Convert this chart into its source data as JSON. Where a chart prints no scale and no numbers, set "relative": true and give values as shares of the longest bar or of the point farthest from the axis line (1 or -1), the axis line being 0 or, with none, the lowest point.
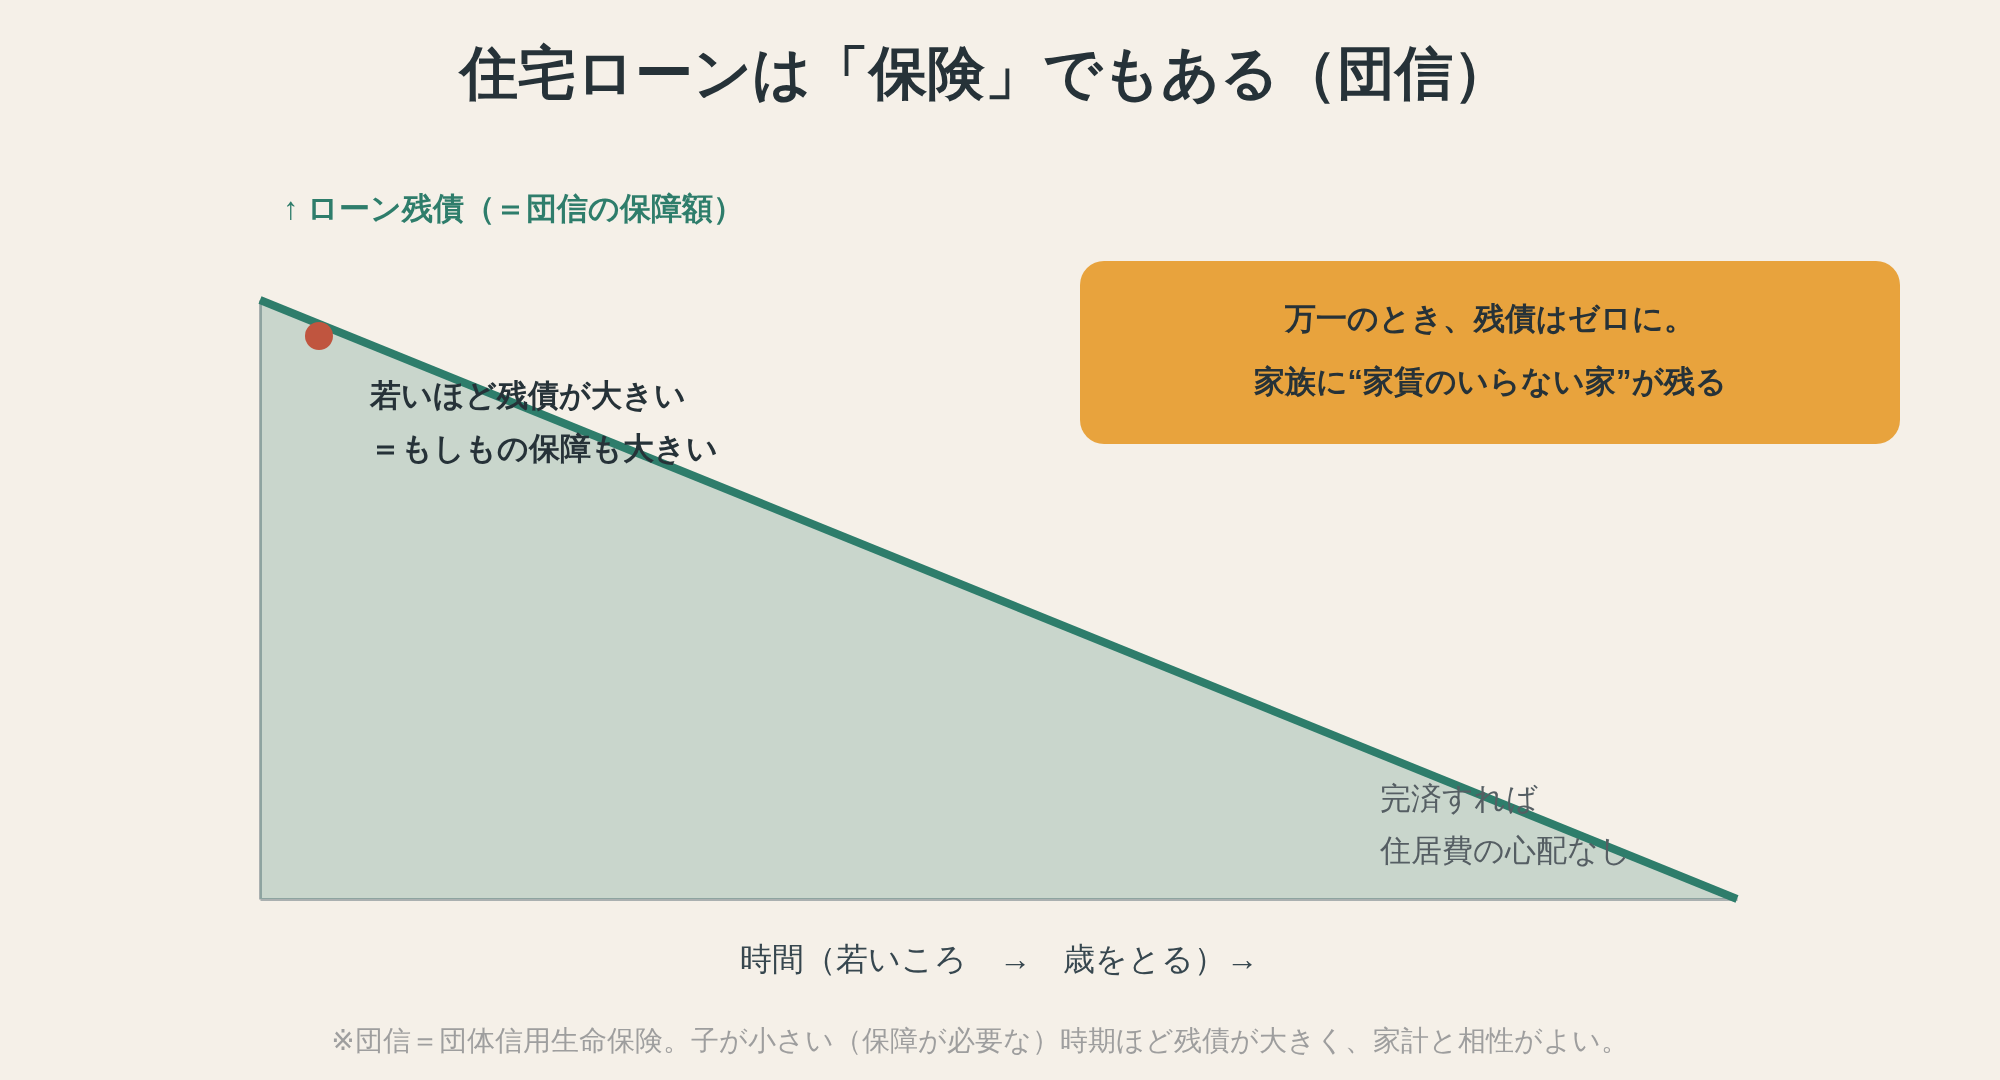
{
  "chart_data": {
    "type": "area",
    "title": "住宅ローンは「保険」でもある（団信）",
    "ylabel": "↑ ローン残債（＝団信の保障額）",
    "xlabel": "時間（若いころ　→　歳をとる）→",
    "categories": [
      null,
      null
    ],
    "relative": true,
    "series": [
      {
        "color": "#2e7d6b",
        "values": [
          1,
          0
        ]
      }
    ],
    "legend": false,
    "grid": false,
    "annotations": [
      "若いほど残債が大きい",
      "＝もしもの保障も大きい",
      "万一のとき、残債はゼロに。",
      "家族に“家賃のいらない家”が残る",
      "完済すれば",
      "住居費の心配なし",
      "※団信＝団体信用生命保険。子が小さい（保障が必要な）時期ほど残債が大きく、家計と相性がよい。"
    ]
  }
}
